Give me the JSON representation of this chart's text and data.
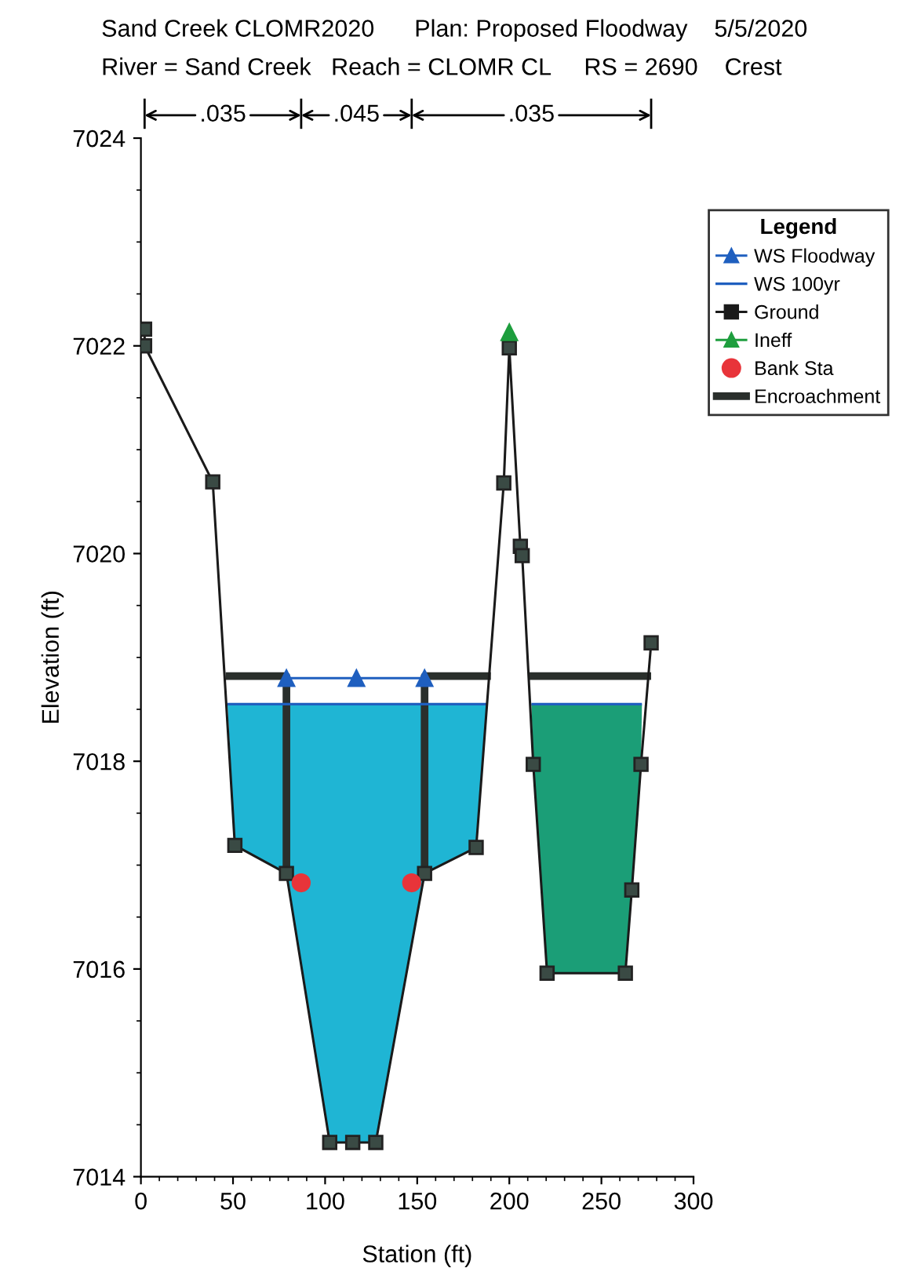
{
  "chart_data": {
    "type": "line",
    "title": "Sand Creek CLOMR2020      Plan: Proposed Floodway    5/5/2020",
    "subtitle": "River = Sand Creek   Reach = CLOMR CL     RS = 2690    Crest",
    "xlabel": "Station (ft)",
    "ylabel": "Elevation (ft)",
    "annotations": [
      ".035",
      ".045",
      ".035"
    ],
    "xlim": [
      0,
      300
    ],
    "xticks": [
      0,
      50,
      100,
      150,
      200,
      250,
      300
    ],
    "ylim": [
      7014,
      7024
    ],
    "yticks": [
      7014,
      7016,
      7018,
      7020,
      7022,
      7024
    ],
    "grid": false,
    "legend": "right",
    "legend_title": "Legend",
    "series": [
      {
        "name": "WS Floodway",
        "type": "line",
        "color": "#1f5fbf",
        "marker": "triangle",
        "x": [
          79,
          117,
          154
        ],
        "values": [
          7018.8,
          7018.8,
          7018.8
        ]
      },
      {
        "name": "WS 100yr",
        "type": "line",
        "color": "#1f5fbf",
        "colors": [
          "#1fb5d4",
          "#1fb5d4",
          null,
          "#1b9e77",
          "#1b9e77"
        ],
        "x": [
          47,
          188,
          null,
          212,
          272
        ],
        "values": [
          7018.55,
          7018.55,
          null,
          7018.55,
          7018.55
        ]
      },
      {
        "name": "Ground",
        "type": "line",
        "color": "#1a1a1a",
        "marker": "square",
        "x": [
          2,
          2,
          39,
          51,
          79,
          102.5,
          115,
          127.5,
          154,
          182,
          197,
          200,
          206,
          207,
          213,
          220.5,
          263,
          266.5,
          271.5,
          277
        ],
        "values": [
          7022.16,
          7022.0,
          7020.69,
          7017.19,
          7016.92,
          7014.33,
          7014.33,
          7014.33,
          7016.92,
          7017.17,
          7020.68,
          7021.98,
          7020.07,
          7019.98,
          7017.97,
          7015.96,
          7015.96,
          7016.76,
          7017.97,
          7019.14
        ]
      },
      {
        "name": "Ineff",
        "type": "line",
        "color": "#1e9e3e",
        "marker": "triangle",
        "x": [
          200
        ],
        "values": [
          7022.13
        ]
      },
      {
        "name": "Bank Sta",
        "type": "scatter",
        "color": "#e8343a",
        "marker": "circle",
        "x": [
          87,
          147
        ],
        "values": [
          7016.83,
          7016.83
        ]
      },
      {
        "name": "Encroachment",
        "type": "line",
        "color": "#2a2f2c",
        "marker": "none",
        "x": [
          46,
          79,
          79,
          null,
          154,
          154,
          190,
          null,
          211,
          277
        ],
        "values": [
          7018.82,
          7018.82,
          7016.92,
          null,
          7016.92,
          7018.82,
          7018.82,
          null,
          7018.82,
          7018.82
        ]
      }
    ]
  }
}
